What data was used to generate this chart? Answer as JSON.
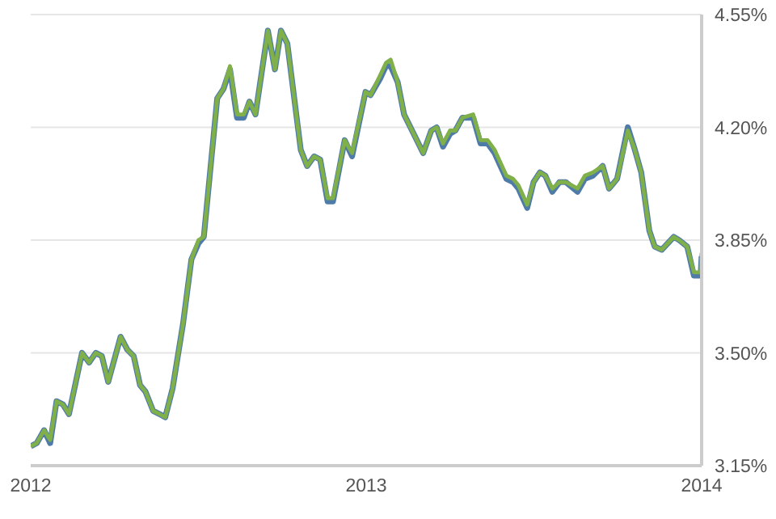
{
  "chart_data": {
    "type": "line",
    "x": [
      2012,
      2012.018,
      2012.04,
      2012.058,
      2012.077,
      2012.096,
      2012.114,
      2012.153,
      2012.174,
      2012.194,
      2012.212,
      2012.231,
      2012.268,
      2012.288,
      2012.307,
      2012.326,
      2012.342,
      2012.365,
      2012.384,
      2012.401,
      2012.423,
      2012.454,
      2012.479,
      2012.5,
      2012.516,
      2012.556,
      2012.575,
      2012.594,
      2012.615,
      2012.635,
      2012.652,
      2012.67,
      2012.707,
      2012.728,
      2012.746,
      2012.765,
      2012.805,
      2012.824,
      2012.845,
      2012.863,
      2012.885,
      2012.901,
      2012.936,
      2012.958,
      2012.998,
      2013.013,
      2013.041,
      2013.059,
      2013.073,
      2013.094,
      2013.113,
      2013.17,
      2013.194,
      2013.21,
      2013.229,
      2013.25,
      2013.266,
      2013.287,
      2013.319,
      2013.341,
      2013.362,
      2013.383,
      2013.418,
      2013.438,
      2013.454,
      2013.48,
      2013.499,
      2013.518,
      2013.534,
      2013.555,
      2013.576,
      2013.595,
      2013.63,
      2013.652,
      2013.676,
      2013.705,
      2013.724,
      2013.748,
      2013.78,
      2013.801,
      2013.82,
      2013.844,
      2013.86,
      2013.881,
      2013.917,
      2013.933,
      2013.957,
      2013.977,
      2013.997,
      2014
    ],
    "series": [
      {
        "color": "#4f7ba8",
        "values": [
          3.21,
          3.22,
          3.26,
          3.22,
          3.35,
          3.34,
          3.31,
          3.5,
          3.47,
          3.5,
          3.49,
          3.41,
          3.55,
          3.51,
          3.49,
          3.4,
          3.38,
          3.32,
          3.31,
          3.3,
          3.39,
          3.59,
          3.79,
          3.84,
          3.86,
          4.29,
          4.32,
          4.38,
          4.23,
          4.23,
          4.28,
          4.24,
          4.5,
          4.38,
          4.5,
          4.46,
          4.13,
          4.08,
          4.11,
          4.1,
          3.97,
          3.97,
          4.16,
          4.11,
          4.31,
          4.3,
          4.35,
          4.39,
          4.39,
          4.34,
          4.24,
          4.12,
          4.19,
          4.2,
          4.14,
          4.18,
          4.19,
          4.23,
          4.23,
          4.15,
          4.15,
          4.12,
          4.04,
          4.03,
          4.01,
          3.95,
          4.03,
          4.06,
          4.05,
          4.0,
          4.03,
          4.03,
          4.0,
          4.04,
          4.05,
          4.08,
          4.01,
          4.04,
          4.2,
          4.13,
          4.06,
          3.88,
          3.83,
          3.82,
          3.86,
          3.85,
          3.83,
          3.74,
          3.74,
          3.8
        ]
      },
      {
        "color": "#80b04a",
        "values": [
          3.21,
          3.22,
          3.26,
          3.23,
          3.35,
          3.34,
          3.31,
          3.5,
          3.47,
          3.5,
          3.49,
          3.41,
          3.55,
          3.51,
          3.49,
          3.4,
          3.38,
          3.32,
          3.31,
          3.3,
          3.39,
          3.59,
          3.79,
          3.85,
          3.86,
          4.29,
          4.32,
          4.39,
          4.24,
          4.24,
          4.28,
          4.24,
          4.5,
          4.38,
          4.5,
          4.46,
          4.13,
          4.08,
          4.11,
          4.1,
          3.98,
          3.98,
          4.16,
          4.12,
          4.31,
          4.3,
          4.36,
          4.4,
          4.41,
          4.34,
          4.24,
          4.12,
          4.19,
          4.2,
          4.15,
          4.19,
          4.19,
          4.23,
          4.24,
          4.16,
          4.16,
          4.13,
          4.05,
          4.04,
          4.02,
          3.96,
          4.03,
          4.06,
          4.05,
          4.01,
          4.03,
          4.03,
          4.01,
          4.05,
          4.06,
          4.08,
          4.01,
          4.04,
          4.19,
          4.13,
          4.06,
          3.88,
          3.83,
          3.82,
          3.86,
          3.85,
          3.83,
          3.75,
          3.75,
          3.81
        ]
      }
    ],
    "xlim": [
      2012,
      2014
    ],
    "xticks": [
      2012,
      2013,
      2014
    ],
    "ylim": [
      3.15,
      4.55
    ],
    "yticks": [
      {
        "value": 3.15,
        "label": "3.15%"
      },
      {
        "value": 3.5,
        "label": "3.50%"
      },
      {
        "value": 3.85,
        "label": "3.85%"
      },
      {
        "value": 4.2,
        "label": "4.20%"
      },
      {
        "value": 4.55,
        "label": "4.55%"
      }
    ],
    "grid": "y",
    "marker": "none",
    "line_style": "solid"
  }
}
